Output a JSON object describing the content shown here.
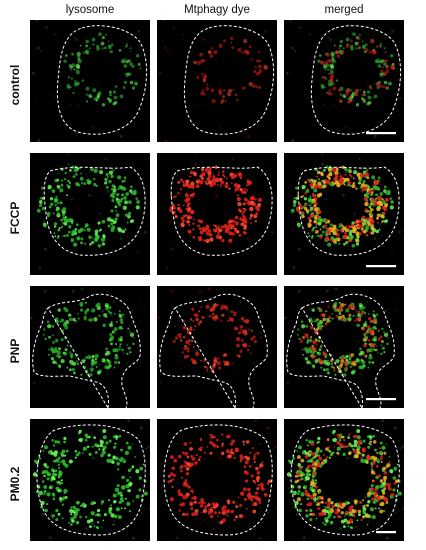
{
  "columns": [
    "lysosome",
    "Mtphagy dye",
    "merged"
  ],
  "rows": [
    "control",
    "FCCP",
    "PNP",
    "PM0.2"
  ],
  "colors": {
    "background": "#000000",
    "lysosome": "#2fbf2f",
    "lysosome_bright": "#6dff5a",
    "dye": "#e0201a",
    "dye_bright": "#ff4a30",
    "overlap": "#e8b020",
    "outline": "#ffffff",
    "scalebar": "#ffffff"
  },
  "intensity": {
    "control": {
      "green": 0.25,
      "red": 0.15
    },
    "FCCP": {
      "green": 0.7,
      "red": 0.9
    },
    "PNP": {
      "green": 0.55,
      "red": 0.45
    },
    "PM0.2": {
      "green": 0.85,
      "red": 0.8
    }
  }
}
